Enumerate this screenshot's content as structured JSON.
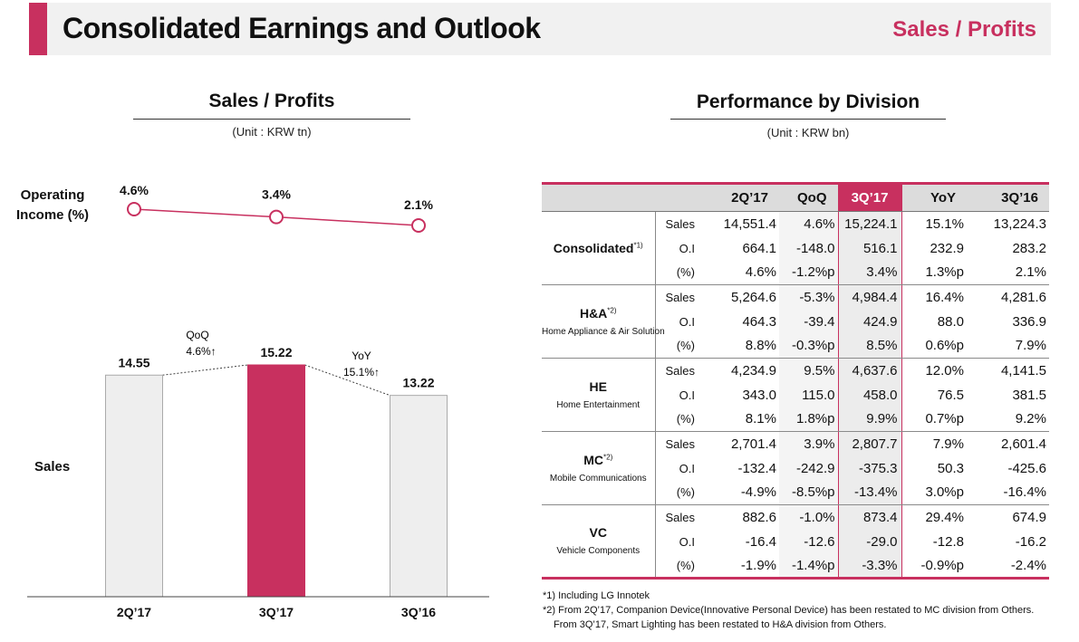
{
  "header": {
    "title": "Consolidated Earnings and Outlook",
    "section": "Sales / Profits"
  },
  "left_panel": {
    "title": "Sales / Profits",
    "unit": "(Unit : KRW tn)",
    "oi_label": "Operating Income (%)",
    "sales_label": "Sales",
    "qoq_label": "QoQ",
    "qoq_value": "4.6%↑",
    "yoy_label": "YoY",
    "yoy_value": "15.1%↑"
  },
  "chart_data": {
    "type": "bar",
    "categories": [
      "2Q’17",
      "3Q’17",
      "3Q’16"
    ],
    "series": [
      {
        "values": [
          14.55,
          15.22,
          13.22
        ],
        "labels": [
          "14.55",
          "15.22",
          "13.22"
        ]
      }
    ],
    "line_series": {
      "values": [
        4.6,
        3.4,
        2.1
      ],
      "labels": [
        "4.6%",
        "3.4%",
        "2.1%"
      ]
    },
    "highlight_index": 1,
    "colors": {
      "bar": "#eeeeee",
      "highlight": "#c8305f",
      "line": "#c8305f"
    }
  },
  "right_panel": {
    "title": "Performance by Division",
    "unit": "(Unit : KRW bn)",
    "columns": [
      "2Q’17",
      "QoQ",
      "3Q’17",
      "YoY",
      "3Q’16"
    ],
    "divisions": [
      {
        "name": "Consolidated",
        "sup": "*1)",
        "sub": "",
        "rows": [
          {
            "metric": "Sales",
            "values": [
              "14,551.4",
              "4.6%",
              "15,224.1",
              "15.1%",
              "13,224.3"
            ]
          },
          {
            "metric": "O.I",
            "values": [
              "664.1",
              "-148.0",
              "516.1",
              "232.9",
              "283.2"
            ]
          },
          {
            "metric": "(%)",
            "values": [
              "4.6%",
              "-1.2%p",
              "3.4%",
              "1.3%p",
              "2.1%"
            ]
          }
        ]
      },
      {
        "name": "H&A",
        "sup": "*2)",
        "sub": "Home Appliance & Air Solution",
        "rows": [
          {
            "metric": "Sales",
            "values": [
              "5,264.6",
              "-5.3%",
              "4,984.4",
              "16.4%",
              "4,281.6"
            ]
          },
          {
            "metric": "O.I",
            "values": [
              "464.3",
              "-39.4",
              "424.9",
              "88.0",
              "336.9"
            ]
          },
          {
            "metric": "(%)",
            "values": [
              "8.8%",
              "-0.3%p",
              "8.5%",
              "0.6%p",
              "7.9%"
            ]
          }
        ]
      },
      {
        "name": "HE",
        "sup": "",
        "sub": "Home Entertainment",
        "rows": [
          {
            "metric": "Sales",
            "values": [
              "4,234.9",
              "9.5%",
              "4,637.6",
              "12.0%",
              "4,141.5"
            ]
          },
          {
            "metric": "O.I",
            "values": [
              "343.0",
              "115.0",
              "458.0",
              "76.5",
              "381.5"
            ]
          },
          {
            "metric": "(%)",
            "values": [
              "8.1%",
              "1.8%p",
              "9.9%",
              "0.7%p",
              "9.2%"
            ]
          }
        ]
      },
      {
        "name": "MC",
        "sup": "*2)",
        "sub": "Mobile Communications",
        "rows": [
          {
            "metric": "Sales",
            "values": [
              "2,701.4",
              "3.9%",
              "2,807.7",
              "7.9%",
              "2,601.4"
            ]
          },
          {
            "metric": "O.I",
            "values": [
              "-132.4",
              "-242.9",
              "-375.3",
              "50.3",
              "-425.6"
            ]
          },
          {
            "metric": "(%)",
            "values": [
              "-4.9%",
              "-8.5%p",
              "-13.4%",
              "3.0%p",
              "-16.4%"
            ]
          }
        ]
      },
      {
        "name": "VC",
        "sup": "",
        "sub": "Vehicle Components",
        "rows": [
          {
            "metric": "Sales",
            "values": [
              "882.6",
              "-1.0%",
              "873.4",
              "29.4%",
              "674.9"
            ]
          },
          {
            "metric": "O.I",
            "values": [
              "-16.4",
              "-12.6",
              "-29.0",
              "-12.8",
              "-16.2"
            ]
          },
          {
            "metric": "(%)",
            "values": [
              "-1.9%",
              "-1.4%p",
              "-3.3%",
              "-0.9%p",
              "-2.4%"
            ]
          }
        ]
      }
    ]
  },
  "footnotes": [
    "*1) Including LG Innotek",
    "*2) From 2Q’17, Companion Device(Innovative Personal Device) has been restated to MC division from Others.",
    "From 3Q’17, Smart Lighting has been restated to H&A division from Others."
  ]
}
